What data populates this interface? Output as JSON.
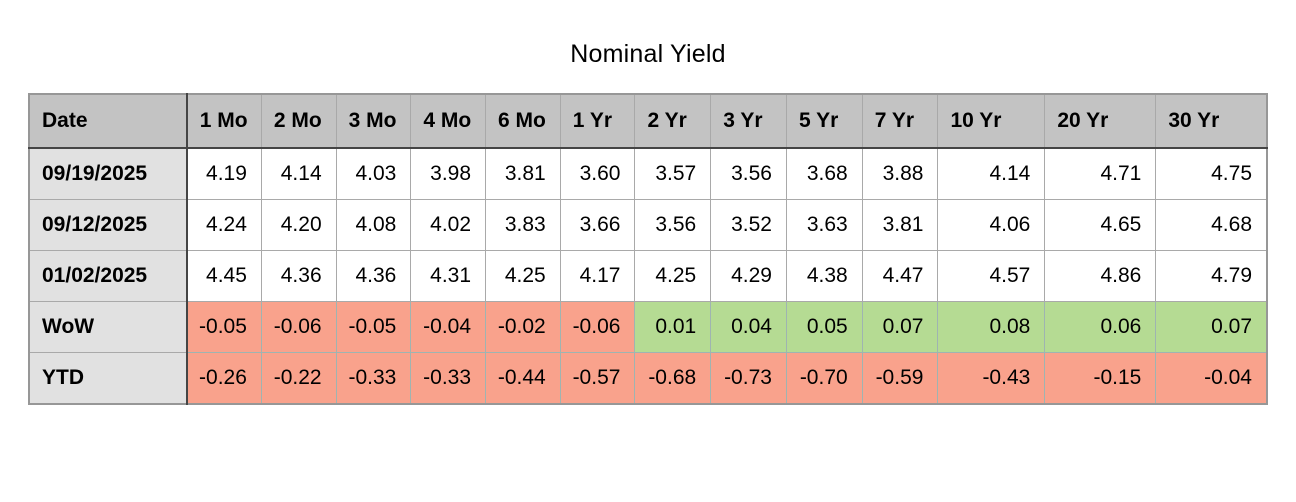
{
  "title": "Nominal Yield",
  "colors": {
    "header_bg": "#c3c3c3",
    "label_bg": "#e1e1e1",
    "negative_bg": "#f9a28c",
    "positive_bg": "#b5db93"
  },
  "chart_data": {
    "type": "table",
    "title": "Nominal Yield",
    "columns": [
      "Date",
      "1 Mo",
      "2 Mo",
      "3 Mo",
      "4 Mo",
      "6 Mo",
      "1 Yr",
      "2 Yr",
      "3 Yr",
      "5 Yr",
      "7 Yr",
      "10 Yr",
      "20 Yr",
      "30 Yr"
    ],
    "rows": [
      {
        "label": "09/19/2025",
        "kind": "data",
        "values": [
          "4.19",
          "4.14",
          "4.03",
          "3.98",
          "3.81",
          "3.60",
          "3.57",
          "3.56",
          "3.68",
          "3.88",
          "4.14",
          "4.71",
          "4.75"
        ]
      },
      {
        "label": "09/12/2025",
        "kind": "data",
        "values": [
          "4.24",
          "4.20",
          "4.08",
          "4.02",
          "3.83",
          "3.66",
          "3.56",
          "3.52",
          "3.63",
          "3.81",
          "4.06",
          "4.65",
          "4.68"
        ]
      },
      {
        "label": "01/02/2025",
        "kind": "data",
        "values": [
          "4.45",
          "4.36",
          "4.36",
          "4.31",
          "4.25",
          "4.17",
          "4.25",
          "4.29",
          "4.38",
          "4.47",
          "4.57",
          "4.86",
          "4.79"
        ]
      },
      {
        "label": "WoW",
        "kind": "delta",
        "values": [
          "-0.05",
          "-0.06",
          "-0.05",
          "-0.04",
          "-0.02",
          "-0.06",
          "0.01",
          "0.04",
          "0.05",
          "0.07",
          "0.08",
          "0.06",
          "0.07"
        ]
      },
      {
        "label": "YTD",
        "kind": "delta",
        "values": [
          "-0.26",
          "-0.22",
          "-0.33",
          "-0.33",
          "-0.44",
          "-0.57",
          "-0.68",
          "-0.73",
          "-0.70",
          "-0.59",
          "-0.43",
          "-0.15",
          "-0.04"
        ]
      }
    ]
  }
}
